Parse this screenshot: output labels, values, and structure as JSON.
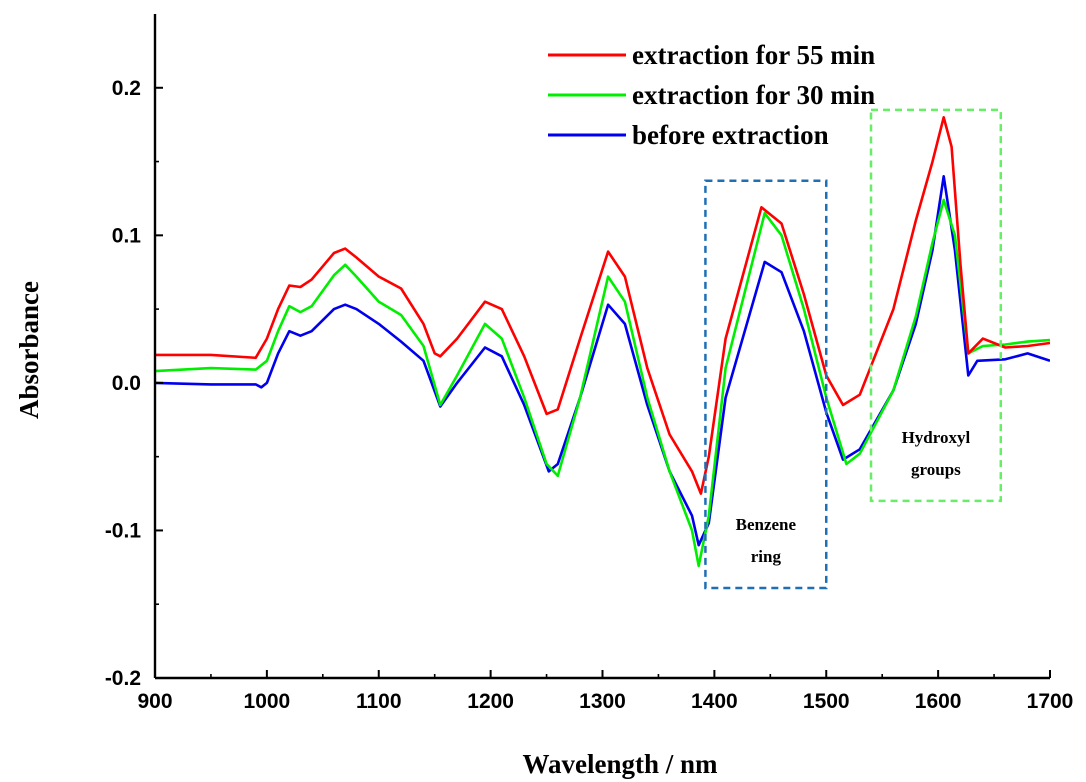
{
  "chart_data": {
    "type": "line",
    "xlabel": "Wavelength / nm",
    "ylabel": "Absorbance",
    "xlim": [
      900,
      1700
    ],
    "ylim": [
      -0.2,
      0.25
    ],
    "xticks": [
      900,
      1000,
      1100,
      1200,
      1300,
      1400,
      1500,
      1600,
      1700
    ],
    "xtick_labels": [
      "900",
      "1000",
      "1100",
      "1200",
      "1300",
      "1400",
      "1500",
      "1600",
      "1700"
    ],
    "yticks": [
      -0.2,
      -0.1,
      0.0,
      0.1,
      0.2
    ],
    "ytick_labels": [
      "-0.2",
      "-0.1",
      "0.0",
      "0.1",
      "0.2"
    ],
    "grid": false,
    "legend_position": "top-right",
    "series": [
      {
        "name": "extraction for 55 min",
        "color": "#ff0000",
        "x": [
          900,
          950,
          990,
          1000,
          1010,
          1020,
          1030,
          1040,
          1060,
          1070,
          1080,
          1100,
          1120,
          1140,
          1150,
          1155,
          1170,
          1195,
          1210,
          1230,
          1250,
          1260,
          1280,
          1305,
          1320,
          1340,
          1360,
          1380,
          1388,
          1395,
          1410,
          1442,
          1460,
          1480,
          1500,
          1515,
          1530,
          1560,
          1580,
          1595,
          1605,
          1612,
          1620,
          1627,
          1640,
          1660,
          1680,
          1700
        ],
        "y": [
          0.019,
          0.019,
          0.017,
          0.03,
          0.05,
          0.066,
          0.065,
          0.07,
          0.088,
          0.091,
          0.085,
          0.072,
          0.064,
          0.04,
          0.02,
          0.018,
          0.03,
          0.055,
          0.05,
          0.018,
          -0.021,
          -0.018,
          0.03,
          0.089,
          0.072,
          0.01,
          -0.035,
          -0.06,
          -0.075,
          -0.05,
          0.03,
          0.119,
          0.108,
          0.06,
          0.005,
          -0.015,
          -0.008,
          0.05,
          0.11,
          0.15,
          0.18,
          0.16,
          0.08,
          0.02,
          0.03,
          0.024,
          0.025,
          0.027
        ]
      },
      {
        "name": "extraction for 30 min",
        "color": "#00ee00",
        "x": [
          900,
          950,
          990,
          1000,
          1010,
          1020,
          1030,
          1040,
          1060,
          1070,
          1080,
          1100,
          1120,
          1140,
          1155,
          1170,
          1195,
          1210,
          1230,
          1250,
          1260,
          1280,
          1305,
          1320,
          1340,
          1360,
          1380,
          1386,
          1395,
          1410,
          1445,
          1460,
          1480,
          1500,
          1518,
          1530,
          1560,
          1580,
          1595,
          1605,
          1615,
          1627,
          1640,
          1660,
          1680,
          1700
        ],
        "y": [
          0.008,
          0.01,
          0.009,
          0.015,
          0.035,
          0.052,
          0.048,
          0.052,
          0.073,
          0.08,
          0.072,
          0.055,
          0.046,
          0.025,
          -0.015,
          0.005,
          0.04,
          0.03,
          -0.01,
          -0.055,
          -0.063,
          -0.01,
          0.072,
          0.055,
          -0.01,
          -0.06,
          -0.1,
          -0.124,
          -0.09,
          0.01,
          0.115,
          0.1,
          0.05,
          -0.01,
          -0.055,
          -0.048,
          -0.005,
          0.045,
          0.095,
          0.124,
          0.1,
          0.02,
          0.025,
          0.026,
          0.028,
          0.029
        ]
      },
      {
        "name": "before extraction",
        "color": "#0000ee",
        "x": [
          900,
          950,
          990,
          995,
          1000,
          1010,
          1020,
          1030,
          1040,
          1060,
          1070,
          1080,
          1100,
          1120,
          1140,
          1155,
          1170,
          1195,
          1210,
          1230,
          1252,
          1260,
          1280,
          1305,
          1320,
          1340,
          1360,
          1380,
          1386,
          1395,
          1410,
          1445,
          1460,
          1480,
          1500,
          1515,
          1530,
          1560,
          1580,
          1595,
          1605,
          1615,
          1627,
          1635,
          1660,
          1680,
          1700
        ],
        "y": [
          0.0,
          -0.001,
          -0.001,
          -0.003,
          0.0,
          0.02,
          0.035,
          0.032,
          0.035,
          0.05,
          0.053,
          0.05,
          0.04,
          0.028,
          0.015,
          -0.016,
          0.0,
          0.024,
          0.018,
          -0.015,
          -0.06,
          -0.055,
          -0.01,
          0.053,
          0.04,
          -0.015,
          -0.06,
          -0.09,
          -0.11,
          -0.095,
          -0.01,
          0.082,
          0.075,
          0.035,
          -0.02,
          -0.052,
          -0.045,
          -0.005,
          0.04,
          0.09,
          0.14,
          0.09,
          0.005,
          0.015,
          0.016,
          0.02,
          0.015
        ]
      }
    ],
    "annotations": [
      {
        "text_lines": [
          "Benzene",
          "ring"
        ],
        "box_color": "#1f6fb5",
        "box_x": [
          1392,
          1500
        ],
        "box_y": [
          -0.139,
          0.137
        ]
      },
      {
        "text_lines": [
          "Hydroxyl",
          "groups"
        ],
        "box_color": "#66ee66",
        "box_x": [
          1540,
          1656
        ],
        "box_y": [
          -0.08,
          0.185
        ]
      }
    ]
  }
}
